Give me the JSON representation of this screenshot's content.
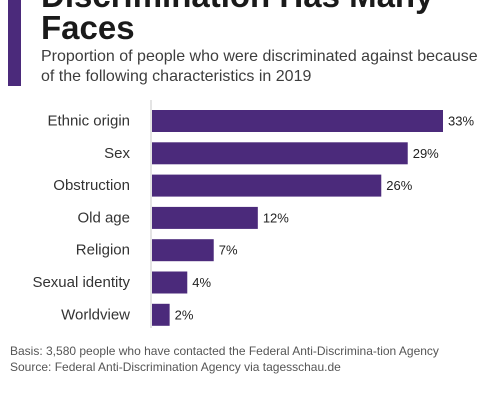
{
  "header": {
    "title_line_1": "Discrimination Has Many",
    "title_line_2": "Faces",
    "subtitle": "Proportion of people who were discriminated against because of the following characteristics in 2019"
  },
  "colors": {
    "accent": "#4b2a7b",
    "bar": "#4b2a7b",
    "axis_line": "#c8c8c8"
  },
  "chart_data": {
    "type": "bar",
    "orientation": "horizontal",
    "categories": [
      "Ethnic origin",
      "Sex",
      "Obstruction",
      "Old age",
      "Religion",
      "Sexual identity",
      "Worldview"
    ],
    "values": [
      33,
      29,
      26,
      12,
      7,
      4,
      2
    ],
    "value_labels": [
      "33%",
      "29%",
      "26%",
      "12%",
      "7%",
      "4%",
      "2%"
    ],
    "unit": "%",
    "xlim": [
      0,
      33
    ],
    "grid": false
  },
  "footer": {
    "basis_text": "Basis: 3,580 people who have contacted the Federal Anti-Discrimina-tion Agency",
    "source_text": "Source: Federal Anti-Discrimination Agency via tagesschau.de"
  }
}
